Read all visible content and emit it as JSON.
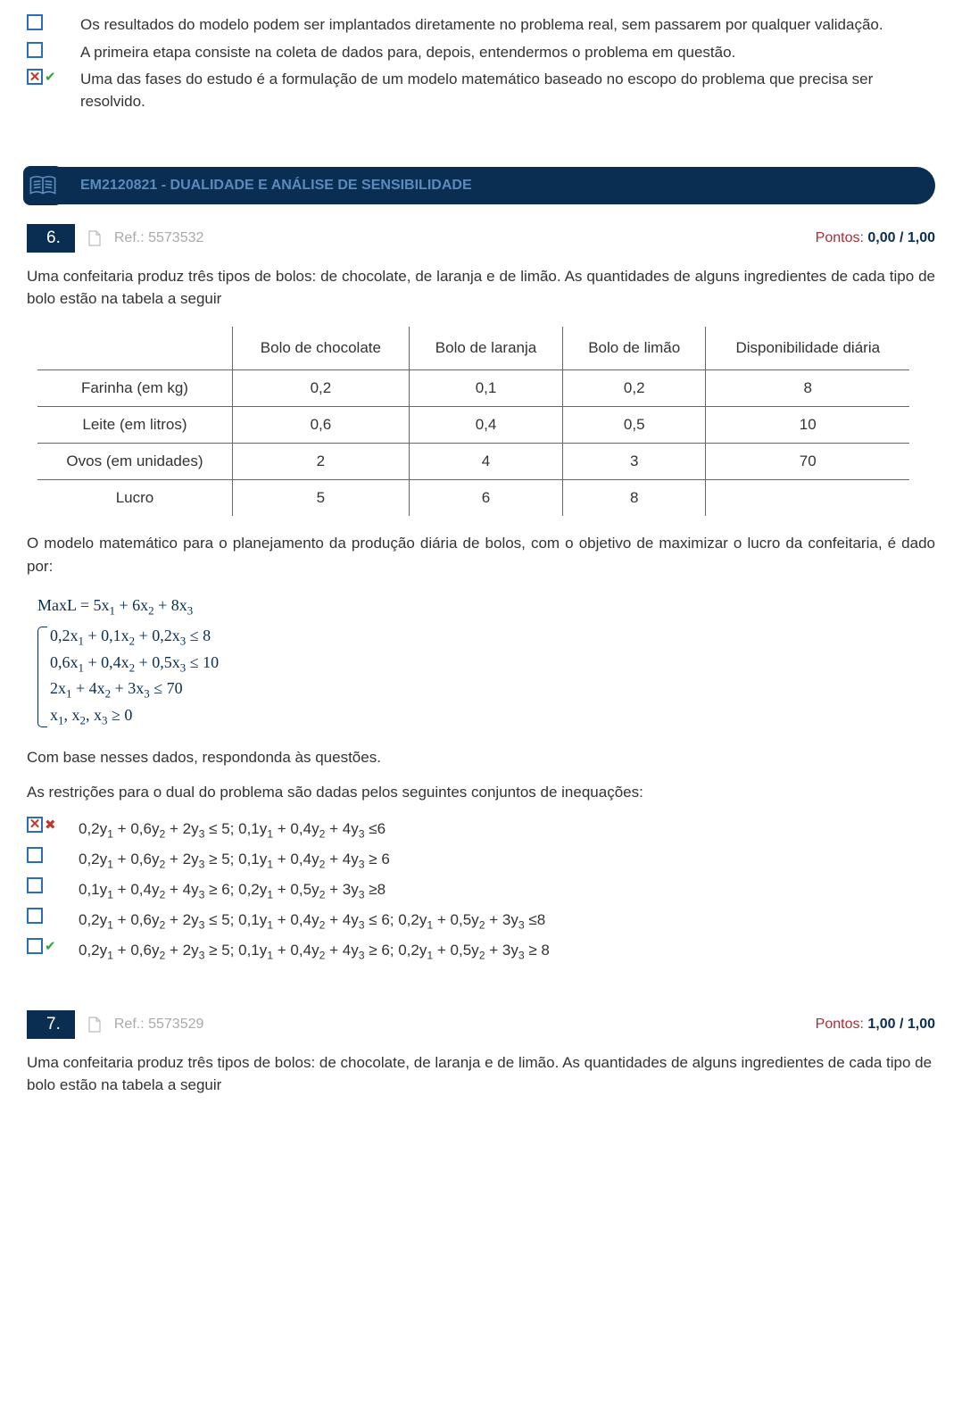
{
  "q5_options": [
    {
      "selected": false,
      "mark": "",
      "text": "Os resultados do modelo podem ser implantados diretamente no problema real, sem passarem por qualquer validação."
    },
    {
      "selected": false,
      "mark": "",
      "text": "A primeira etapa consiste na coleta de dados para, depois, entendermos o problema em questão."
    },
    {
      "selected": true,
      "mark": "right",
      "text": "Uma das fases do estudo é a formulação de um modelo matemático baseado no escopo do problema que precisa ser resolvido."
    }
  ],
  "section": {
    "title": "EM2120821 - DUALIDADE E ANÁLISE DE SENSIBILIDADE"
  },
  "q6": {
    "num": "6.",
    "ref": "Ref.: 5573532",
    "points_label": "Pontos:",
    "points_value": "0,00 / 1,00",
    "intro": "Uma confeitaria produz três tipos de bolos: de chocolate, de laranja e de limão. As quantidades de alguns ingredientes de cada tipo de bolo estão na tabela a seguir",
    "table": {
      "headers": [
        "",
        "Bolo de chocolate",
        "Bolo de laranja",
        "Bolo de limão",
        "Disponibilidade diária"
      ],
      "rows": [
        [
          "Farinha (em kg)",
          "0,2",
          "0,1",
          "0,2",
          "8"
        ],
        [
          "Leite (em litros)",
          "0,6",
          "0,4",
          "0,5",
          "10"
        ],
        [
          "Ovos (em unidades)",
          "2",
          "4",
          "3",
          "70"
        ],
        [
          "Lucro",
          "5",
          "6",
          "8",
          ""
        ]
      ]
    },
    "model_intro": "O modelo matemático para o planejamento da produção diária de bolos, com o objetivo de maximizar o lucro da confeitaria, é dado por:",
    "post1": "Com base nesses dados, respondonda às questões.",
    "post2": "As restrições para o dual do problema são dadas pelos seguintes conjuntos de inequações:",
    "answers": [
      {
        "selected": true,
        "mark": "wrong",
        "text": "0,2y₁ + 0,6y₂ + 2y₃ ≤ 5; 0,1y₁ + 0,4y₂ + 4y₃ ≤6"
      },
      {
        "selected": false,
        "mark": "",
        "text": "0,2y₁ + 0,6y₂ + 2y₃ ≥ 5; 0,1y₁ + 0,4y₂ + 4y₃ ≥ 6"
      },
      {
        "selected": false,
        "mark": "",
        "text": "0,1y₁ + 0,4y₂ + 4y₃ ≥ 6; 0,2y₁ + 0,5y₂ + 3y₃ ≥8"
      },
      {
        "selected": false,
        "mark": "",
        "text": "0,2y₁ + 0,6y₂ + 2y₃ ≤ 5; 0,1y₁ + 0,4y₂ + 4y₃ ≤ 6; 0,2y₁ + 0,5y₂ + 3y₃ ≤8"
      },
      {
        "selected": false,
        "mark": "right",
        "text": "0,2y₁ + 0,6y₂ + 2y₃ ≥ 5; 0,1y₁ + 0,4y₂ + 4y₃ ≥ 6; 0,2y₁ + 0,5y₂ + 3y₃ ≥ 8"
      }
    ]
  },
  "q7": {
    "num": "7.",
    "ref": "Ref.: 5573529",
    "points_label": "Pontos:",
    "points_value": "1,00 / 1,00",
    "intro": "Uma confeitaria produz três tipos de bolos: de chocolate, de laranja e de limão. As quantidades de alguns ingredientes de cada tipo de bolo estão na tabela a seguir"
  }
}
